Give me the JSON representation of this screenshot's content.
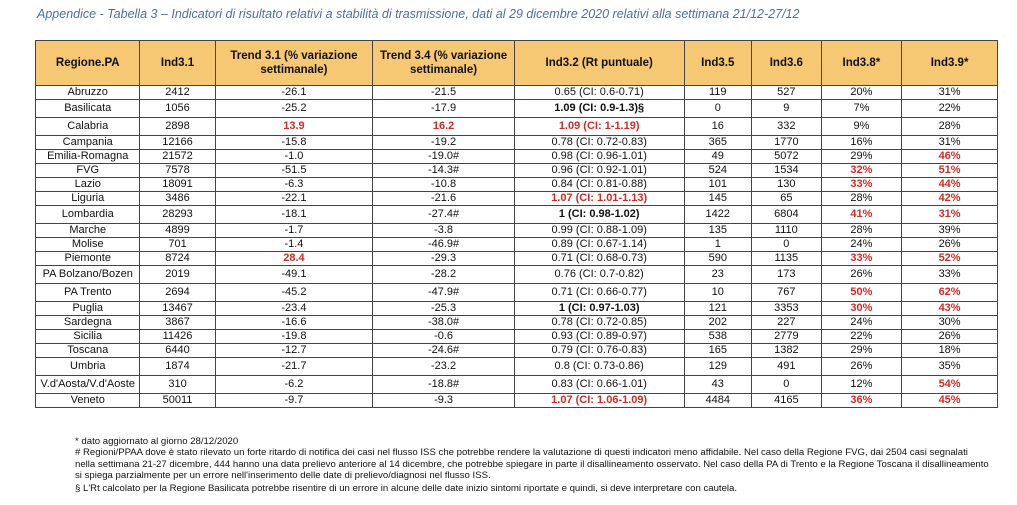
{
  "caption": "Appendice - Tabella 3 – Indicatori di risultato relativi a stabilità di trasmissione, dati al 29 dicembre 2020 relativi alla settimana 21/12-27/12",
  "headers": [
    "Regione.PA",
    "Ind3.1",
    "Trend 3.1 (% variazione settimanale)",
    "Trend 3.4 (% variazione settimanale)",
    "Ind3.2 (Rt puntuale)",
    "Ind3.5",
    "Ind3.6",
    "Ind3.8*",
    "Ind3.9*"
  ],
  "rows": [
    {
      "h": "r13",
      "cells": [
        {
          "v": "Abruzzo"
        },
        {
          "v": "2412"
        },
        {
          "v": "-26.1"
        },
        {
          "v": "-21.5"
        },
        {
          "v": "0.65 (CI: 0.6-0.71)"
        },
        {
          "v": "119"
        },
        {
          "v": "527"
        },
        {
          "v": "20%"
        },
        {
          "v": "31%"
        }
      ]
    },
    {
      "h": "r17",
      "cells": [
        {
          "v": "Basilicata"
        },
        {
          "v": "1056"
        },
        {
          "v": "-25.2"
        },
        {
          "v": "-17.9"
        },
        {
          "v": "1.09 (CI: 0.9-1.3)§",
          "s": "bold"
        },
        {
          "v": "0"
        },
        {
          "v": "9"
        },
        {
          "v": "7%"
        },
        {
          "v": "22%"
        }
      ]
    },
    {
      "h": "r17",
      "cells": [
        {
          "v": "Calabria"
        },
        {
          "v": "2898"
        },
        {
          "v": "13.9",
          "s": "red"
        },
        {
          "v": "16.2",
          "s": "red"
        },
        {
          "v": "1.09 (CI: 1-1.19)",
          "s": "red"
        },
        {
          "v": "16"
        },
        {
          "v": "332"
        },
        {
          "v": "9%"
        },
        {
          "v": "28%"
        }
      ]
    },
    {
      "h": "r13",
      "cells": [
        {
          "v": "Campania"
        },
        {
          "v": "12166"
        },
        {
          "v": "-15.8"
        },
        {
          "v": "-19.2"
        },
        {
          "v": "0.78 (CI: 0.72-0.83)"
        },
        {
          "v": "365"
        },
        {
          "v": "1770"
        },
        {
          "v": "16%"
        },
        {
          "v": "31%"
        }
      ]
    },
    {
      "h": "r13",
      "cells": [
        {
          "v": "Emilia-Romagna"
        },
        {
          "v": "21572"
        },
        {
          "v": "-1.0"
        },
        {
          "v": "-19.0#"
        },
        {
          "v": "0.98 (CI: 0.96-1.01)"
        },
        {
          "v": "49"
        },
        {
          "v": "5072"
        },
        {
          "v": "29%"
        },
        {
          "v": "46%",
          "s": "red"
        }
      ]
    },
    {
      "h": "r13",
      "cells": [
        {
          "v": "FVG"
        },
        {
          "v": "7578"
        },
        {
          "v": "-51.5"
        },
        {
          "v": "-14.3#"
        },
        {
          "v": "0.96 (CI: 0.92-1.01)"
        },
        {
          "v": "524"
        },
        {
          "v": "1534"
        },
        {
          "v": "32%",
          "s": "red"
        },
        {
          "v": "51%",
          "s": "red"
        }
      ]
    },
    {
      "h": "r13",
      "cells": [
        {
          "v": "Lazio"
        },
        {
          "v": "18091"
        },
        {
          "v": "-6.3"
        },
        {
          "v": "-10.8"
        },
        {
          "v": "0.84 (CI: 0.81-0.88)"
        },
        {
          "v": "101"
        },
        {
          "v": "130"
        },
        {
          "v": "33%",
          "s": "red"
        },
        {
          "v": "44%",
          "s": "red"
        }
      ]
    },
    {
      "h": "r13",
      "cells": [
        {
          "v": "Liguria"
        },
        {
          "v": "3486"
        },
        {
          "v": "-22.1"
        },
        {
          "v": "-21.6"
        },
        {
          "v": "1.07 (CI: 1.01-1.13)",
          "s": "red"
        },
        {
          "v": "145"
        },
        {
          "v": "65"
        },
        {
          "v": "28%"
        },
        {
          "v": "42%",
          "s": "red"
        }
      ]
    },
    {
      "h": "r17",
      "cells": [
        {
          "v": "Lombardia"
        },
        {
          "v": "28293"
        },
        {
          "v": "-18.1"
        },
        {
          "v": "-27.4#"
        },
        {
          "v": "1 (CI: 0.98-1.02)",
          "s": "bold"
        },
        {
          "v": "1422"
        },
        {
          "v": "6804"
        },
        {
          "v": "41%",
          "s": "red"
        },
        {
          "v": "31%",
          "s": "red"
        }
      ]
    },
    {
      "h": "r13",
      "cells": [
        {
          "v": "Marche"
        },
        {
          "v": "4899"
        },
        {
          "v": "-1.7"
        },
        {
          "v": "-3.8"
        },
        {
          "v": "0.99 (CI: 0.88-1.09)"
        },
        {
          "v": "135"
        },
        {
          "v": "1110"
        },
        {
          "v": "28%"
        },
        {
          "v": "39%"
        }
      ]
    },
    {
      "h": "r13",
      "cells": [
        {
          "v": "Molise"
        },
        {
          "v": "701"
        },
        {
          "v": "-1.4"
        },
        {
          "v": "-46.9#"
        },
        {
          "v": "0.89 (CI: 0.67-1.14)"
        },
        {
          "v": "1"
        },
        {
          "v": "0"
        },
        {
          "v": "24%"
        },
        {
          "v": "26%"
        }
      ]
    },
    {
      "h": "r13",
      "cells": [
        {
          "v": "Piemonte"
        },
        {
          "v": "8724"
        },
        {
          "v": "28.4",
          "s": "red"
        },
        {
          "v": "-29.3"
        },
        {
          "v": "0.71 (CI: 0.68-0.73)"
        },
        {
          "v": "590"
        },
        {
          "v": "1135"
        },
        {
          "v": "33%",
          "s": "red"
        },
        {
          "v": "52%",
          "s": "red"
        }
      ]
    },
    {
      "h": "r17",
      "cells": [
        {
          "v": "PA Bolzano/Bozen"
        },
        {
          "v": "2019"
        },
        {
          "v": "-49.1"
        },
        {
          "v": "-28.2"
        },
        {
          "v": "0.76 (CI: 0.7-0.82)"
        },
        {
          "v": "23"
        },
        {
          "v": "173"
        },
        {
          "v": "26%"
        },
        {
          "v": "33%"
        }
      ]
    },
    {
      "h": "r17",
      "cells": [
        {
          "v": "PA Trento"
        },
        {
          "v": "2694"
        },
        {
          "v": "-45.2"
        },
        {
          "v": "-47.9#"
        },
        {
          "v": "0.71 (CI: 0.66-0.77)"
        },
        {
          "v": "10"
        },
        {
          "v": "767"
        },
        {
          "v": "50%",
          "s": "red"
        },
        {
          "v": "62%",
          "s": "red"
        }
      ]
    },
    {
      "h": "r13",
      "cells": [
        {
          "v": "Puglia"
        },
        {
          "v": "13467"
        },
        {
          "v": "-23.4"
        },
        {
          "v": "-25.3"
        },
        {
          "v": "1 (CI: 0.97-1.03)",
          "s": "bold"
        },
        {
          "v": "121"
        },
        {
          "v": "3353"
        },
        {
          "v": "30%",
          "s": "red"
        },
        {
          "v": "43%",
          "s": "red"
        }
      ]
    },
    {
      "h": "r13",
      "cells": [
        {
          "v": "Sardegna"
        },
        {
          "v": "3867"
        },
        {
          "v": "-16.6"
        },
        {
          "v": "-38.0#"
        },
        {
          "v": "0.78 (CI: 0.72-0.85)"
        },
        {
          "v": "202"
        },
        {
          "v": "227"
        },
        {
          "v": "24%"
        },
        {
          "v": "30%"
        }
      ]
    },
    {
      "h": "r13",
      "cells": [
        {
          "v": "Sicilia"
        },
        {
          "v": "11426"
        },
        {
          "v": "-19.8"
        },
        {
          "v": "-0.6"
        },
        {
          "v": "0.93 (CI: 0.89-0.97)"
        },
        {
          "v": "538"
        },
        {
          "v": "2779"
        },
        {
          "v": "22%"
        },
        {
          "v": "26%"
        }
      ]
    },
    {
      "h": "r13",
      "cells": [
        {
          "v": "Toscana"
        },
        {
          "v": "6440"
        },
        {
          "v": "-12.7"
        },
        {
          "v": "-24.6#"
        },
        {
          "v": "0.79 (CI: 0.76-0.83)"
        },
        {
          "v": "165"
        },
        {
          "v": "1382"
        },
        {
          "v": "29%"
        },
        {
          "v": "18%"
        }
      ]
    },
    {
      "h": "r17",
      "cells": [
        {
          "v": "Umbria"
        },
        {
          "v": "1874"
        },
        {
          "v": "-21.7"
        },
        {
          "v": "-23.2"
        },
        {
          "v": "0.8 (CI: 0.73-0.86)"
        },
        {
          "v": "129"
        },
        {
          "v": "491"
        },
        {
          "v": "26%"
        },
        {
          "v": "35%"
        }
      ]
    },
    {
      "h": "r17",
      "cells": [
        {
          "v": "V.d'Aosta/V.d'Aoste"
        },
        {
          "v": "310"
        },
        {
          "v": "-6.2"
        },
        {
          "v": "-18.8#"
        },
        {
          "v": "0.83 (CI: 0.66-1.01)"
        },
        {
          "v": "43"
        },
        {
          "v": "0"
        },
        {
          "v": "12%"
        },
        {
          "v": "54%",
          "s": "red"
        }
      ]
    },
    {
      "h": "r12",
      "cells": [
        {
          "v": "Veneto"
        },
        {
          "v": "50011"
        },
        {
          "v": "-9.7"
        },
        {
          "v": "-9.3"
        },
        {
          "v": "1.07 (CI: 1.06-1.09)",
          "s": "red"
        },
        {
          "v": "4484"
        },
        {
          "v": "4165"
        },
        {
          "v": "36%",
          "s": "red"
        },
        {
          "v": "45%",
          "s": "red"
        }
      ]
    }
  ],
  "notes": [
    "* dato aggiornato al giorno 28/12/2020",
    "# Regioni/PPAA dove è stato rilevato un forte ritardo di notifica dei casi nel flusso ISS che potrebbe rendere la valutazione di questi indicatori meno affidabile. Nel caso della Regione FVG, dai 2504 casi segnalati nella settimana 21-27 dicembre, 444 hanno una data prelievo anteriore al 14 dicembre, che potrebbe spiegare in parte il disallineamento osservato. Nel caso della PA di Trento e la Regione Toscana il disallineamento si spiega parzialmente per un errore nell'inserimento delle date di prelievo/diagnosi nel flusso ISS.",
    "§ L'Rt calcolato per la Regione Basilicata potrebbe risentire di un errore in alcune delle date inizio sintomi riportate e quindi, si deve interpretare con cautela."
  ]
}
